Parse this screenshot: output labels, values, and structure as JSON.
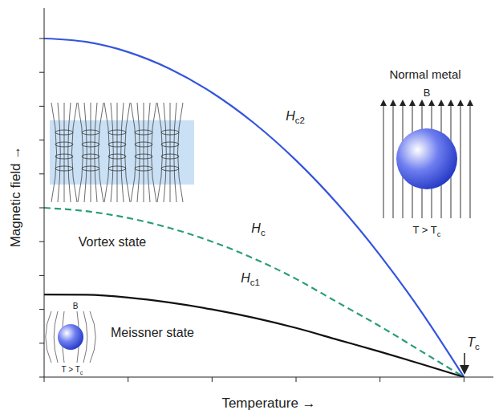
{
  "chart_data": {
    "type": "line",
    "x_label": "Temperature →",
    "y_label": "Magnetic field →",
    "x": [
      0,
      0.1,
      0.2,
      0.3,
      0.4,
      0.5,
      0.6,
      0.7,
      0.8,
      0.9,
      1.0
    ],
    "series": [
      {
        "name": "Hc2",
        "color": "#3355dd",
        "line_style": "solid",
        "values": [
          1.0,
          0.99,
          0.96,
          0.91,
          0.84,
          0.75,
          0.64,
          0.51,
          0.36,
          0.19,
          0.0
        ]
      },
      {
        "name": "Hc",
        "color": "#2a9d78",
        "line_style": "dashed",
        "values": [
          0.5,
          0.49,
          0.47,
          0.44,
          0.4,
          0.35,
          0.29,
          0.22,
          0.15,
          0.075,
          0.0
        ]
      },
      {
        "name": "Hc1",
        "color": "#111111",
        "line_style": "solid",
        "values": [
          0.244,
          0.243,
          0.235,
          0.22,
          0.2,
          0.175,
          0.145,
          0.11,
          0.075,
          0.038,
          0.0
        ]
      }
    ],
    "xlim": [
      0,
      1.07
    ],
    "ylim": [
      0,
      1.09
    ],
    "xticks": [
      0,
      0.2,
      0.4,
      0.6,
      0.8,
      1.0
    ],
    "yticks": [
      0,
      0.1,
      0.2,
      0.3,
      0.4,
      0.5,
      0.6,
      0.7,
      0.8,
      0.9,
      1.0
    ],
    "tick_labels": false,
    "grid": false,
    "annotations": [
      "Normal metal",
      "B",
      "T > Tc",
      "Vortex state",
      "Meissner state",
      "B",
      "T > Tc",
      "Tc"
    ]
  }
}
